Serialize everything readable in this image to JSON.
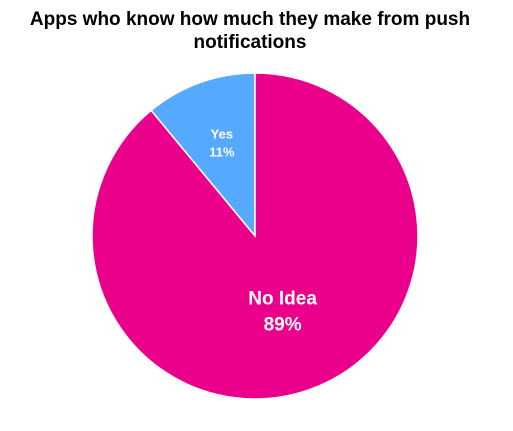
{
  "chart_data": {
    "type": "pie",
    "title": "Apps who know how much they make from push notifications",
    "categories": [
      "Yes",
      "No Idea"
    ],
    "values": [
      11,
      89
    ],
    "value_labels": [
      "11%",
      "89%"
    ],
    "colors": [
      "#55aaff",
      "#ea008a"
    ],
    "start_angle": 90,
    "direction": "counterclockwise"
  }
}
